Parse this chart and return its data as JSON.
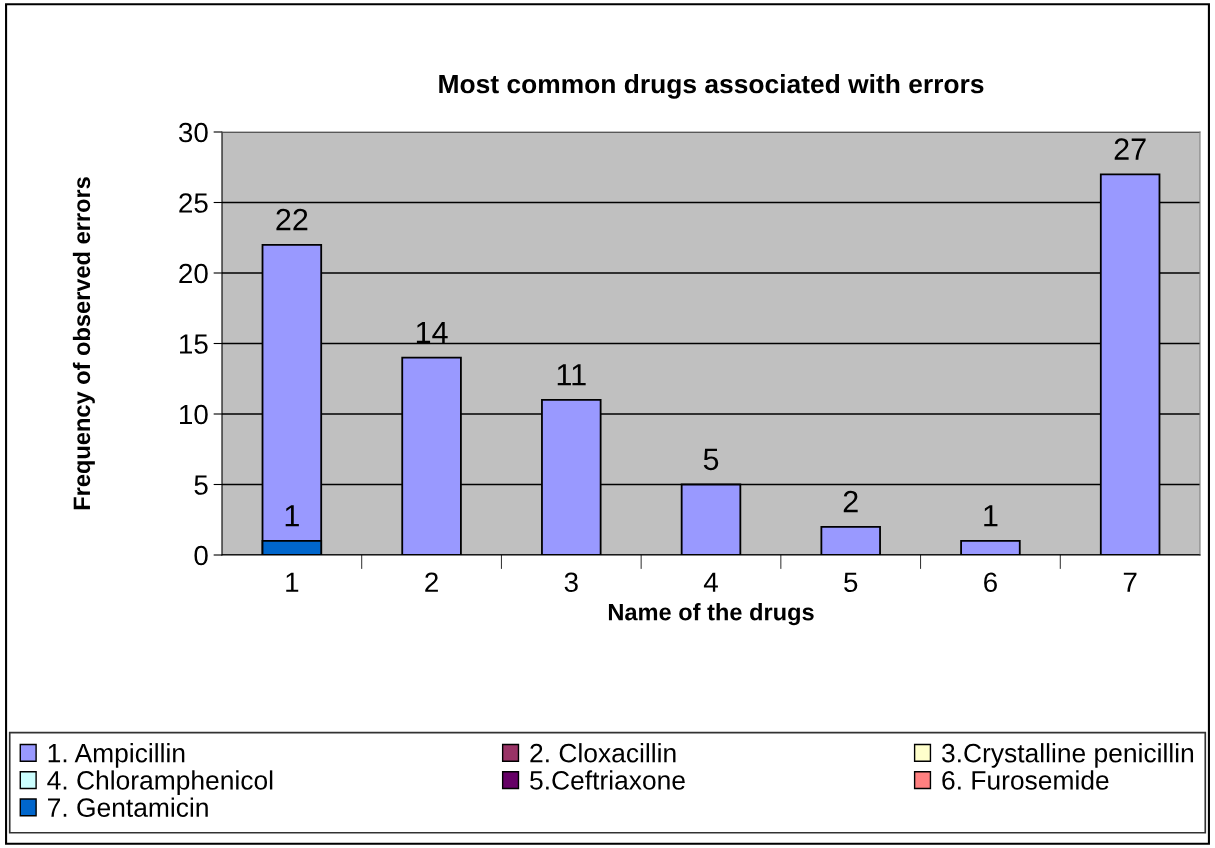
{
  "chart_data": {
    "type": "bar",
    "title": "Most common drugs associated with errors",
    "xlabel": "Name of the drugs",
    "ylabel": "Frequency of observed errors",
    "categories": [
      "1",
      "2",
      "3",
      "4",
      "5",
      "6",
      "7"
    ],
    "series": [
      {
        "name": "1. Ampicillin",
        "color": "#9999ff",
        "values": [
          22,
          14,
          11,
          5,
          2,
          1,
          27
        ]
      },
      {
        "name": "2. Cloxacillin",
        "color": "#993366",
        "values": [
          null,
          null,
          null,
          null,
          null,
          null,
          null
        ]
      },
      {
        "name": "3.Crystalline penicillin",
        "color": "#ffffcc",
        "values": [
          null,
          null,
          null,
          null,
          null,
          null,
          null
        ]
      },
      {
        "name": "4. Chloramphenicol",
        "color": "#ccffff",
        "values": [
          null,
          null,
          null,
          null,
          null,
          null,
          null
        ]
      },
      {
        "name": "5.Ceftriaxone",
        "color": "#660066",
        "values": [
          null,
          null,
          null,
          null,
          null,
          null,
          null
        ]
      },
      {
        "name": "6. Furosemide",
        "color": "#ff8080",
        "values": [
          null,
          null,
          null,
          null,
          null,
          null,
          null
        ]
      },
      {
        "name": "7. Gentamicin",
        "color": "#0066cc",
        "values": [
          1,
          null,
          null,
          null,
          null,
          null,
          null
        ]
      }
    ],
    "ylim": [
      0,
      30
    ],
    "yticks": [
      0,
      5,
      10,
      15,
      20,
      25,
      30
    ],
    "grid": "y",
    "legend": "bottom",
    "data_labels": true
  }
}
